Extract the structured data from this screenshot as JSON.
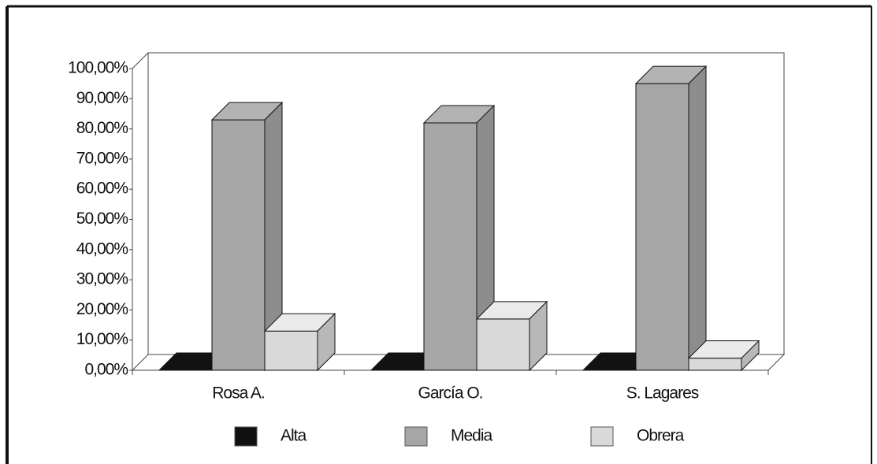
{
  "chart_data": {
    "type": "bar3d",
    "categories": [
      "Rosa A.",
      "García O.",
      "S. Lagares"
    ],
    "series": [
      {
        "name": "Alta",
        "color": "#111111",
        "values": [
          0,
          0,
          0
        ]
      },
      {
        "name": "Media",
        "color": "#a6a6a6",
        "values": [
          83,
          82,
          95
        ]
      },
      {
        "name": "Obrera",
        "color": "#d9d9d9",
        "values": [
          13,
          17,
          4
        ]
      }
    ],
    "ylim": [
      0,
      100
    ],
    "yticks": [
      {
        "value": 0,
        "label": "0,00%"
      },
      {
        "value": 10,
        "label": "10,00%"
      },
      {
        "value": 20,
        "label": "20,00%"
      },
      {
        "value": 30,
        "label": "30,00%"
      },
      {
        "value": 40,
        "label": "40,00%"
      },
      {
        "value": 50,
        "label": "50,00%"
      },
      {
        "value": 60,
        "label": "60,00%"
      },
      {
        "value": 70,
        "label": "70,00%"
      },
      {
        "value": 80,
        "label": "80,00%"
      },
      {
        "value": 90,
        "label": "90,00%"
      },
      {
        "value": 100,
        "label": "100,00%"
      }
    ],
    "legend": "bottom"
  }
}
